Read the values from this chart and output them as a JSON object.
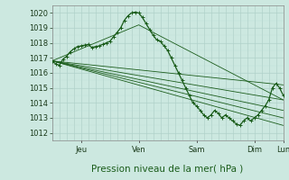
{
  "bg_color": "#cce8e0",
  "grid_color_major": "#aaccc4",
  "grid_color_minor": "#bbddd6",
  "line_color": "#1a5c1a",
  "ylim": [
    1011.5,
    1020.5
  ],
  "yticks": [
    1012,
    1013,
    1014,
    1015,
    1016,
    1017,
    1018,
    1019,
    1020
  ],
  "xlim": [
    0,
    192
  ],
  "xlabel": "Pression niveau de la mer( hPa )",
  "xlabel_fontsize": 7.5,
  "xlabel_color": "#1a5c1a",
  "tick_fontsize": 6,
  "day_labels": [
    "Jeu",
    "Ven",
    "Sam",
    "Dim",
    "Lun"
  ],
  "day_positions": [
    24,
    72,
    120,
    168,
    192
  ],
  "forecast_lines": [
    [
      [
        0,
        1016.8
      ],
      [
        192,
        1012.5
      ]
    ],
    [
      [
        0,
        1016.8
      ],
      [
        192,
        1013.0
      ]
    ],
    [
      [
        0,
        1016.8
      ],
      [
        192,
        1013.5
      ]
    ],
    [
      [
        0,
        1016.8
      ],
      [
        192,
        1014.2
      ]
    ],
    [
      [
        0,
        1016.8
      ],
      [
        192,
        1015.2
      ]
    ],
    [
      [
        0,
        1016.8
      ],
      [
        72,
        1019.2
      ],
      [
        192,
        1014.2
      ]
    ]
  ],
  "main_series": [
    [
      0,
      1016.8
    ],
    [
      3,
      1016.6
    ],
    [
      6,
      1016.5
    ],
    [
      9,
      1016.9
    ],
    [
      12,
      1017.1
    ],
    [
      15,
      1017.4
    ],
    [
      18,
      1017.6
    ],
    [
      21,
      1017.75
    ],
    [
      24,
      1017.8
    ],
    [
      27,
      1017.85
    ],
    [
      30,
      1017.9
    ],
    [
      33,
      1017.7
    ],
    [
      36,
      1017.75
    ],
    [
      39,
      1017.8
    ],
    [
      42,
      1017.9
    ],
    [
      45,
      1018.0
    ],
    [
      48,
      1018.1
    ],
    [
      51,
      1018.4
    ],
    [
      54,
      1018.7
    ],
    [
      57,
      1019.0
    ],
    [
      60,
      1019.5
    ],
    [
      63,
      1019.8
    ],
    [
      66,
      1020.0
    ],
    [
      69,
      1020.05
    ],
    [
      72,
      1020.0
    ],
    [
      75,
      1019.7
    ],
    [
      78,
      1019.3
    ],
    [
      81,
      1018.9
    ],
    [
      84,
      1018.5
    ],
    [
      87,
      1018.2
    ],
    [
      90,
      1018.1
    ],
    [
      93,
      1017.8
    ],
    [
      96,
      1017.5
    ],
    [
      99,
      1017.0
    ],
    [
      102,
      1016.5
    ],
    [
      105,
      1016.0
    ],
    [
      108,
      1015.5
    ],
    [
      111,
      1015.0
    ],
    [
      114,
      1014.5
    ],
    [
      117,
      1014.0
    ],
    [
      120,
      1013.8
    ],
    [
      123,
      1013.5
    ],
    [
      126,
      1013.2
    ],
    [
      129,
      1013.0
    ],
    [
      132,
      1013.2
    ],
    [
      135,
      1013.5
    ],
    [
      138,
      1013.3
    ],
    [
      141,
      1013.0
    ],
    [
      144,
      1013.2
    ],
    [
      147,
      1013.0
    ],
    [
      150,
      1012.8
    ],
    [
      153,
      1012.6
    ],
    [
      156,
      1012.5
    ],
    [
      159,
      1012.8
    ],
    [
      162,
      1013.0
    ],
    [
      165,
      1012.8
    ],
    [
      168,
      1013.0
    ],
    [
      171,
      1013.2
    ],
    [
      174,
      1013.5
    ],
    [
      177,
      1013.8
    ],
    [
      180,
      1014.2
    ],
    [
      183,
      1015.0
    ],
    [
      186,
      1015.3
    ],
    [
      189,
      1015.0
    ],
    [
      192,
      1014.5
    ]
  ]
}
